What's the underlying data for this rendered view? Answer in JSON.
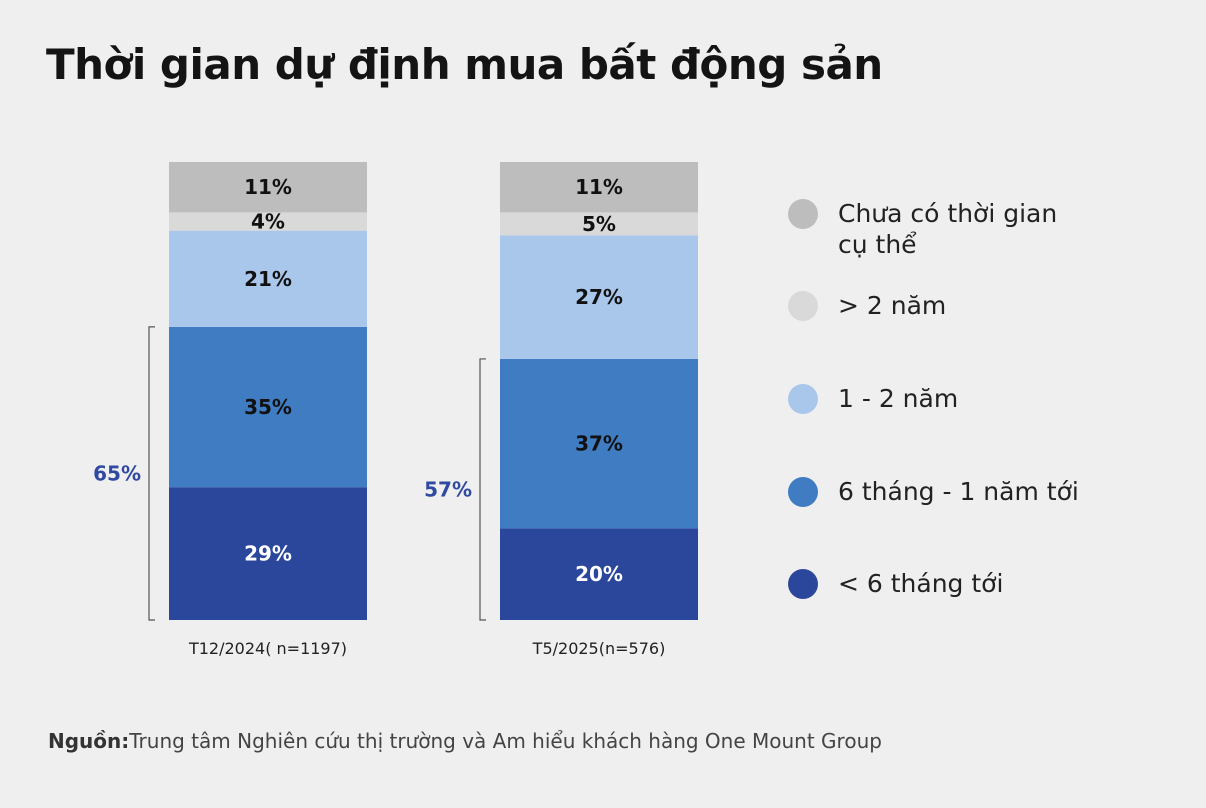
{
  "chart_data": {
    "type": "bar",
    "stacked": true,
    "title": "Thời gian dự định mua bất động sản",
    "categories": [
      "T12/2024( n=1197)",
      "T5/2025(n=576)"
    ],
    "series": [
      {
        "name": "< 6 tháng tới",
        "color": "#2b479b",
        "values": [
          29,
          20
        ],
        "label_color": "#ffffff"
      },
      {
        "name": "6 tháng - 1 năm tới",
        "color": "#3f7cc2",
        "values": [
          35,
          37
        ],
        "label_color": "#111111"
      },
      {
        "name": "1 - 2 năm",
        "color": "#a9c7eb",
        "values": [
          21,
          27
        ],
        "label_color": "#111111"
      },
      {
        "name": "> 2 năm",
        "color": "#d9d9d9",
        "values": [
          4,
          5
        ],
        "label_color": "#111111"
      },
      {
        "name": "Chưa có thời gian cụ thể",
        "color": "#bdbdbd",
        "values": [
          11,
          11
        ],
        "label_color": "#111111"
      }
    ],
    "brackets": [
      {
        "label": "65%",
        "category": 0,
        "series_covered": [
          "< 6 tháng tới",
          "6 tháng - 1 năm tới"
        ]
      },
      {
        "label": "57%",
        "category": 1,
        "series_covered": [
          "< 6 tháng tới",
          "6 tháng - 1 năm tới"
        ]
      }
    ],
    "bracket_label_color": "#2f4aa0",
    "legend_position": "right",
    "grid": false
  },
  "source": {
    "label": "Nguồn:",
    "text": "Trung tâm Nghiên cứu thị trường và Am hiểu khách hàng One Mount Group"
  }
}
